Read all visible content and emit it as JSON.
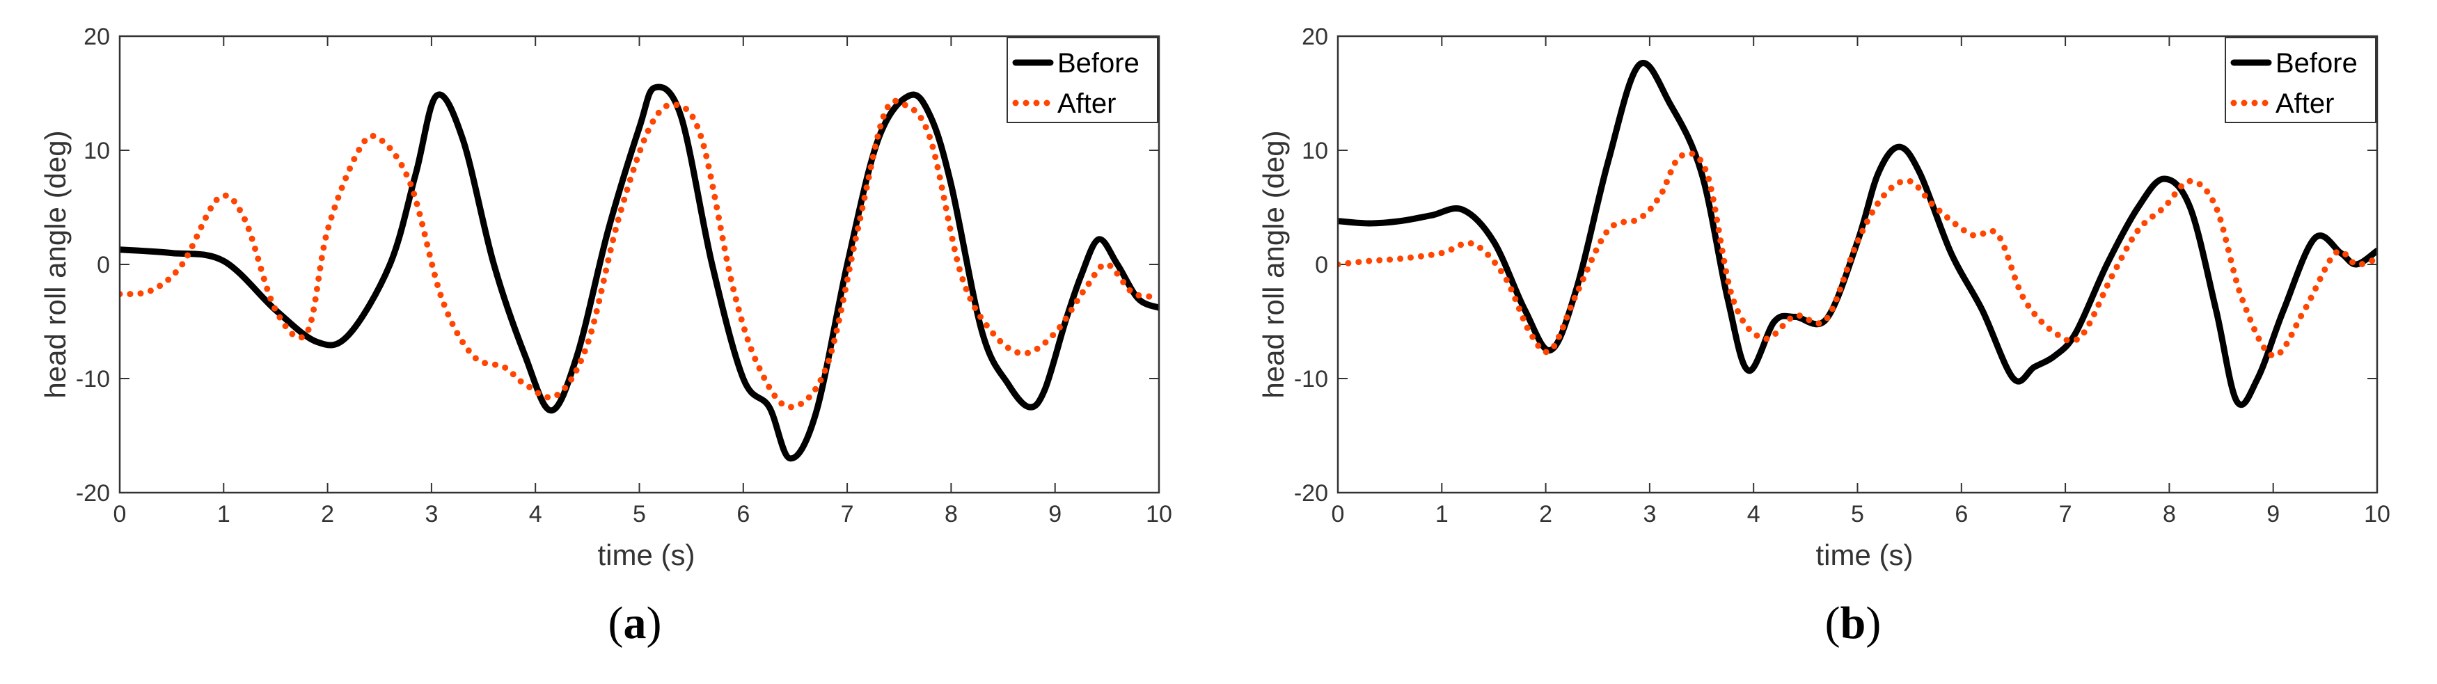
{
  "colors": {
    "before": "#000000",
    "after": "#ff4500",
    "axis": "#333333"
  },
  "chart_data": [
    {
      "type": "line",
      "panel_label": "a",
      "xlabel": "time (s)",
      "ylabel": "head roll angle (deg)",
      "xlim": [
        0,
        10
      ],
      "ylim": [
        -20,
        20
      ],
      "xticks": [
        "0",
        "1",
        "2",
        "3",
        "4",
        "5",
        "6",
        "7",
        "8",
        "9",
        "10"
      ],
      "yticks": [
        "-20",
        "-10",
        "0",
        "10",
        "20"
      ],
      "legend": [
        "Before",
        "After"
      ],
      "series": [
        {
          "name": "Before",
          "style": "solid",
          "x": [
            0,
            0.5,
            1,
            1.5,
            1.9,
            2.2,
            2.6,
            2.85,
            3.05,
            3.3,
            3.6,
            3.9,
            4.15,
            4.4,
            4.7,
            5.0,
            5.15,
            5.4,
            5.7,
            6.0,
            6.25,
            6.45,
            6.7,
            7.0,
            7.3,
            7.6,
            7.8,
            8.0,
            8.3,
            8.55,
            8.75,
            8.9,
            9.1,
            9.25,
            9.42,
            9.6,
            9.8,
            10
          ],
          "y": [
            1.3,
            1.0,
            0.3,
            -4,
            -6.8,
            -6.2,
            0,
            8,
            14.8,
            11,
            0,
            -8,
            -12.8,
            -8,
            3,
            12,
            15.5,
            13,
            0,
            -10,
            -12.5,
            -17,
            -13,
            0,
            11,
            14.8,
            13,
            7,
            -6,
            -10.5,
            -12.5,
            -11,
            -5,
            -1,
            2.2,
            0,
            -3,
            -3.8
          ]
        },
        {
          "name": "After",
          "style": "dotted",
          "x": [
            0,
            0.3,
            0.6,
            0.95,
            1.2,
            1.5,
            1.8,
            2.0,
            2.3,
            2.5,
            2.8,
            3.1,
            3.4,
            3.7,
            3.9,
            4.2,
            4.5,
            4.8,
            5.1,
            5.35,
            5.6,
            5.9,
            6.15,
            6.45,
            6.8,
            7.1,
            7.35,
            7.55,
            7.8,
            8.1,
            8.4,
            8.7,
            9.0,
            9.3,
            9.5,
            9.75,
            10
          ],
          "y": [
            -2.6,
            -2.3,
            0,
            5.8,
            4,
            -4,
            -6,
            3,
            10,
            11,
            7,
            -3,
            -8,
            -9,
            -10.5,
            -11.5,
            -7,
            4,
            12,
            14,
            11,
            -2,
            -9,
            -12.5,
            -9,
            3,
            13,
            14,
            11,
            -1,
            -6,
            -7.8,
            -6,
            -2,
            0,
            -2.5,
            -2.8
          ]
        }
      ]
    },
    {
      "type": "line",
      "panel_label": "b",
      "xlabel": "time (s)",
      "ylabel": "head roll angle (deg)",
      "xlim": [
        0,
        10
      ],
      "ylim": [
        -20,
        20
      ],
      "xticks": [
        "0",
        "1",
        "2",
        "3",
        "4",
        "5",
        "6",
        "7",
        "8",
        "9",
        "10"
      ],
      "yticks": [
        "-20",
        "-10",
        "0",
        "10",
        "20"
      ],
      "legend": [
        "Before",
        "After"
      ],
      "series": [
        {
          "name": "Before",
          "style": "solid",
          "x": [
            0,
            0.3,
            0.6,
            0.9,
            1.2,
            1.5,
            1.8,
            2.05,
            2.3,
            2.6,
            2.9,
            3.2,
            3.5,
            3.75,
            3.95,
            4.2,
            4.4,
            4.7,
            5.0,
            5.2,
            5.4,
            5.6,
            5.9,
            6.2,
            6.5,
            6.7,
            6.9,
            7.1,
            7.4,
            7.7,
            7.95,
            8.2,
            8.45,
            8.65,
            8.85,
            9.1,
            9.4,
            9.65,
            9.8,
            10
          ],
          "y": [
            3.8,
            3.6,
            3.8,
            4.3,
            4.8,
            2,
            -4,
            -7.5,
            -2,
            9,
            17.5,
            14,
            8,
            -3,
            -9.3,
            -5,
            -4.6,
            -4.8,
            2,
            8,
            10.3,
            8,
            1,
            -4,
            -10,
            -9,
            -8,
            -6,
            0,
            5,
            7.5,
            5,
            -4,
            -12,
            -10,
            -4,
            2.3,
            1,
            0,
            1.2
          ]
        },
        {
          "name": "After",
          "style": "dotted",
          "x": [
            0,
            0.3,
            0.6,
            1.0,
            1.3,
            1.6,
            1.85,
            2.05,
            2.3,
            2.6,
            2.9,
            3.1,
            3.3,
            3.55,
            3.8,
            4.1,
            4.4,
            4.7,
            5.0,
            5.25,
            5.5,
            5.75,
            6.1,
            6.35,
            6.6,
            6.9,
            7.15,
            7.45,
            7.7,
            7.95,
            8.2,
            8.45,
            8.7,
            9.0,
            9.3,
            9.6,
            9.8,
            10
          ],
          "y": [
            0,
            0.3,
            0.5,
            1,
            1.8,
            -1,
            -6,
            -7.5,
            -2.5,
            3,
            4,
            6,
            9.5,
            8,
            -3,
            -6.5,
            -4.5,
            -4.8,
            2,
            6,
            7.3,
            5,
            2.6,
            2.6,
            -3,
            -6,
            -6.3,
            -1,
            3,
            5,
            7.3,
            5,
            -3,
            -8,
            -4,
            1,
            0,
            0.5
          ]
        }
      ]
    }
  ]
}
